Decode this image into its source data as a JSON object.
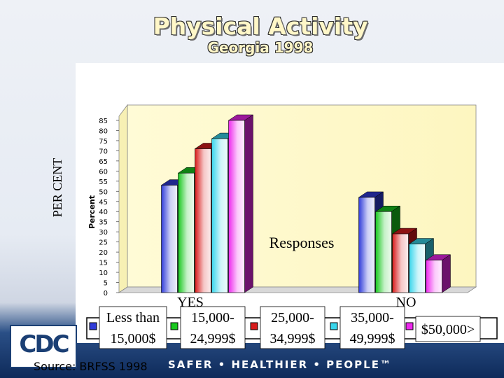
{
  "page": {
    "title": "Physical Activity",
    "subtitle": "Georgia 1998",
    "source": "Source: BRFSS 1998",
    "tagline": "SAFER • HEALTHIER • PEOPLE™",
    "logo_text": "CDC"
  },
  "chart_data": {
    "type": "bar",
    "title": "",
    "xlabel": "Responses",
    "ylabel": "PER CENT",
    "ylabel_inner": "Percent",
    "categories": [
      "YES",
      "NO"
    ],
    "yticks": [
      0,
      5,
      10,
      15,
      20,
      25,
      30,
      35,
      40,
      45,
      50,
      55,
      60,
      65,
      70,
      75,
      80,
      85
    ],
    "ylim": [
      0,
      85
    ],
    "grid": false,
    "legend_position": "bottom",
    "series": [
      {
        "name": "Less than 15,000$",
        "color": "#2f3bd9",
        "values": [
          53,
          47
        ]
      },
      {
        "name": "15,000-24,999$",
        "color": "#18c81e",
        "values": [
          59,
          40
        ]
      },
      {
        "name": "25,000-34,999$",
        "color": "#d81b1b",
        "values": [
          71,
          29
        ]
      },
      {
        "name": "35,000-49,999$",
        "color": "#38d6ec",
        "values": [
          76,
          24
        ]
      },
      {
        "name": "$50,000>",
        "color": "#ee28ee",
        "values": [
          85,
          16
        ]
      }
    ],
    "legend_labels": [
      [
        "Less than",
        "15,000$"
      ],
      [
        "15,000-",
        "24,999$"
      ],
      [
        "25,000-",
        "34,999$"
      ],
      [
        "35,000-",
        "49,999$"
      ],
      [
        "$50,000>"
      ]
    ]
  }
}
